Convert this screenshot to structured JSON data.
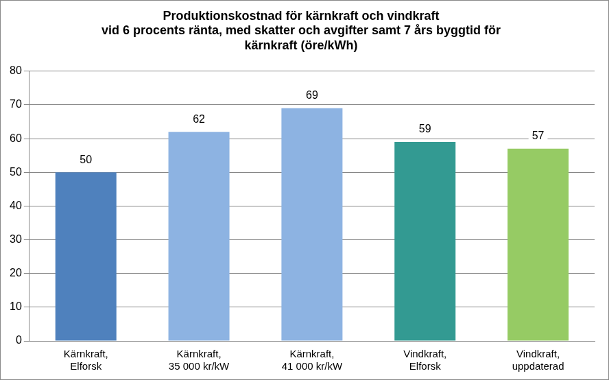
{
  "chart_data": {
    "type": "bar",
    "title": [
      "Produktionskostnad för kärnkraft och vindkraft",
      "vid 6 procents ränta, med skatter och avgifter samt 7 års byggtid för",
      "kärnkraft (öre/kWh)"
    ],
    "categories": [
      "Kärnkraft, Elforsk",
      "Kärnkraft, 35 000 kr/kW",
      "Kärnkraft, 41 000 kr/kW",
      "Vindkraft, Elforsk",
      "Vindkraft, uppdaterad"
    ],
    "values": [
      50,
      62,
      69,
      59,
      57
    ],
    "colors": [
      "#4f81bd",
      "#8db3e2",
      "#8db3e2",
      "#339a92",
      "#96cb64"
    ],
    "ylim": [
      0,
      80
    ],
    "yticks": [
      0,
      10,
      20,
      30,
      40,
      50,
      60,
      70,
      80
    ],
    "grid": true,
    "data_labels": true
  }
}
